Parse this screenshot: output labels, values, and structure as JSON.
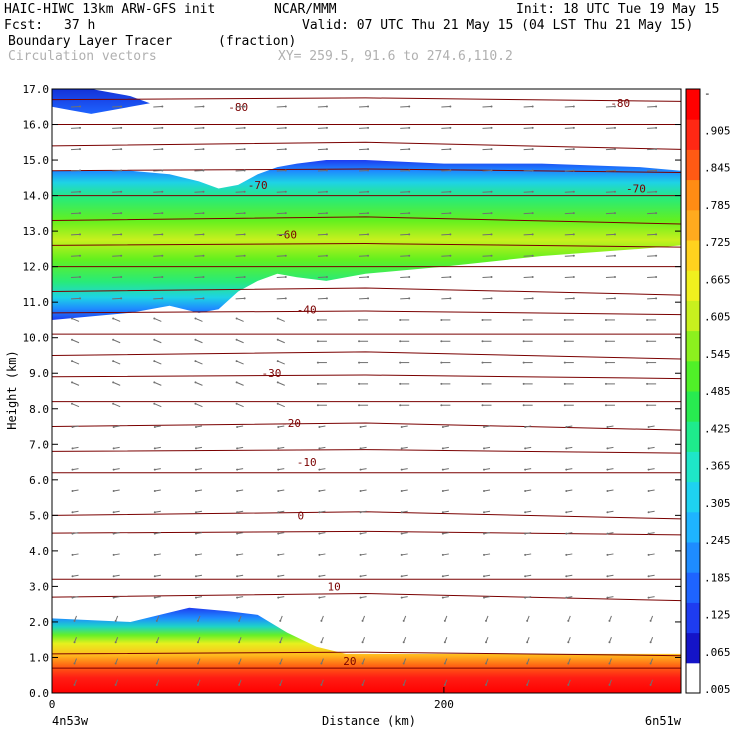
{
  "header": {
    "model": "HAIC-HIWC 13km ARW-GFS init",
    "org": "NCAR/MMM",
    "init": "Init: 18 UTC Tue 19 May 15",
    "fcst_label": "Fcst:",
    "fcst_value": "37 h",
    "valid": "Valid: 07 UTC Thu 21 May 15 (04 LST Thu 21 May 15)",
    "field_name": "Boundary Layer Tracer",
    "field_units": "(fraction)",
    "vector_name": "Circulation vectors",
    "xy_range": "XY= 259.5, 91.6 to 274.6,110.2"
  },
  "colors": {
    "temp_contour": "#7a0000",
    "vector": "#707070",
    "colorbar": [
      "#ffffff",
      "#1414c8",
      "#1e3cf0",
      "#1e64ff",
      "#1e8cff",
      "#1eb4ff",
      "#1ed2f0",
      "#1ee6c8",
      "#1eeb8c",
      "#28eb50",
      "#50f028",
      "#8cf01e",
      "#c8f01e",
      "#f0f01e",
      "#ffd21e",
      "#ffaa1e",
      "#ff8c14",
      "#ff5a14",
      "#ff2814",
      "#ff0000"
    ]
  },
  "chart_data": {
    "type": "heatmap",
    "title": "Boundary Layer Tracer (fraction)",
    "xlabel": "Distance (km)",
    "ylabel": "Height (km)",
    "x_tick_labels": [
      "0",
      "200"
    ],
    "x_endpoint_labels": [
      "4n53w",
      "6n51w"
    ],
    "xlim": [
      0,
      321
    ],
    "ylim": [
      0,
      17
    ],
    "y_ticks": [
      "0.0",
      "1.0",
      "2.0",
      "3.0",
      "4.0",
      "5.0",
      "6.0",
      "7.0",
      "8.0",
      "9.0",
      "10.0",
      "11.0",
      "12.0",
      "13.0",
      "14.0",
      "15.0",
      "16.0",
      "17.0"
    ],
    "colorbar_labels": [
      ".005",
      ".065",
      ".125",
      ".185",
      ".245",
      ".305",
      ".365",
      ".425",
      ".485",
      ".545",
      ".605",
      ".665",
      ".725",
      ".785",
      ".845",
      ".905",
      "-"
    ],
    "temperature_contour_labels": [
      {
        "x": 95,
        "y": 16.5,
        "text": "-80"
      },
      {
        "x": 290,
        "y": 16.6,
        "text": "-80"
      },
      {
        "x": 105,
        "y": 14.3,
        "text": "-70"
      },
      {
        "x": 298,
        "y": 14.2,
        "text": "-70"
      },
      {
        "x": 120,
        "y": 12.9,
        "text": "-60"
      },
      {
        "x": 130,
        "y": 10.8,
        "text": "-40"
      },
      {
        "x": 112,
        "y": 9.0,
        "text": "-30"
      },
      {
        "x": 122,
        "y": 7.6,
        "text": "-20"
      },
      {
        "x": 130,
        "y": 6.5,
        "text": "-10"
      },
      {
        "x": 127,
        "y": 5.0,
        "text": "0"
      },
      {
        "x": 144,
        "y": 3.0,
        "text": "10"
      },
      {
        "x": 152,
        "y": 0.9,
        "text": "20"
      }
    ],
    "temperature_isotherm_heights_km": [
      0.7,
      1.1,
      2.7,
      3.2,
      4.5,
      5.0,
      6.2,
      6.8,
      7.5,
      8.2,
      8.9,
      9.5,
      10.1,
      10.7,
      11.3,
      12.0,
      12.6,
      13.3,
      14.0,
      14.7,
      15.4,
      16.0,
      16.7
    ],
    "tracer_layers": [
      {
        "name": "boundary layer",
        "color_level": 0.5,
        "x": [
          0,
          40,
          70,
          90,
          105,
          120,
          135,
          150,
          200,
          321
        ],
        "top": [
          2.1,
          2.0,
          2.4,
          2.3,
          2.2,
          1.7,
          1.3,
          1.1,
          1.1,
          1.1
        ],
        "bottom": [
          0.0,
          0.0,
          0.0,
          0.0,
          0.0,
          0.0,
          0.0,
          0.0,
          0.0,
          0.0
        ]
      },
      {
        "name": "upper layer",
        "color_level": 0.8,
        "x": [
          0,
          20,
          40,
          60,
          75,
          85,
          95,
          105,
          115,
          125,
          140,
          160,
          200,
          250,
          300,
          321
        ],
        "top": [
          14.7,
          14.7,
          14.7,
          14.6,
          14.4,
          14.2,
          14.3,
          14.6,
          14.8,
          14.9,
          15.0,
          15.0,
          14.9,
          14.9,
          14.8,
          14.7
        ],
        "bottom": [
          10.5,
          10.6,
          10.7,
          10.9,
          10.7,
          10.8,
          11.3,
          11.6,
          11.8,
          11.7,
          11.6,
          11.8,
          12.0,
          12.3,
          12.5,
          12.6
        ]
      },
      {
        "name": "top-left patch",
        "color_level": 0.1,
        "x": [
          0,
          10,
          20,
          40,
          50
        ],
        "top": [
          17.0,
          17.0,
          17.0,
          16.8,
          16.6
        ],
        "bottom": [
          16.5,
          16.4,
          16.3,
          16.5,
          16.6
        ]
      }
    ]
  }
}
